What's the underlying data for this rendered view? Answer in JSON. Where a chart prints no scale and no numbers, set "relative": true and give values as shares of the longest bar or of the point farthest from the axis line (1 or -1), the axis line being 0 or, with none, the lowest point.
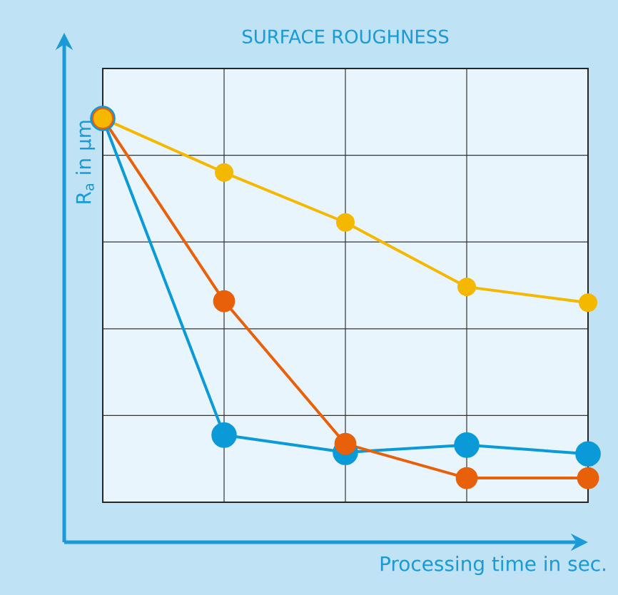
{
  "chart_data": {
    "type": "line",
    "title": "SURFACE ROUGHNESS",
    "xlabel": "Processing time in sec.",
    "ylabel": "R$_{a}$ in µm",
    "relative": true,
    "grid": true,
    "marker": "circle",
    "categories": [
      null,
      null,
      null,
      null,
      null
    ],
    "series": [
      {
        "color": "#0b9ad8",
        "values": [
          1,
          0.175,
          0.13,
          0.149,
          0.126
        ]
      },
      {
        "color": "#e8600a",
        "values": [
          1,
          0.524,
          0.152,
          0.063,
          0.063
        ]
      },
      {
        "color": "#f5b800",
        "values": [
          1,
          0.859,
          0.729,
          0.561,
          0.52
        ]
      }
    ]
  }
}
